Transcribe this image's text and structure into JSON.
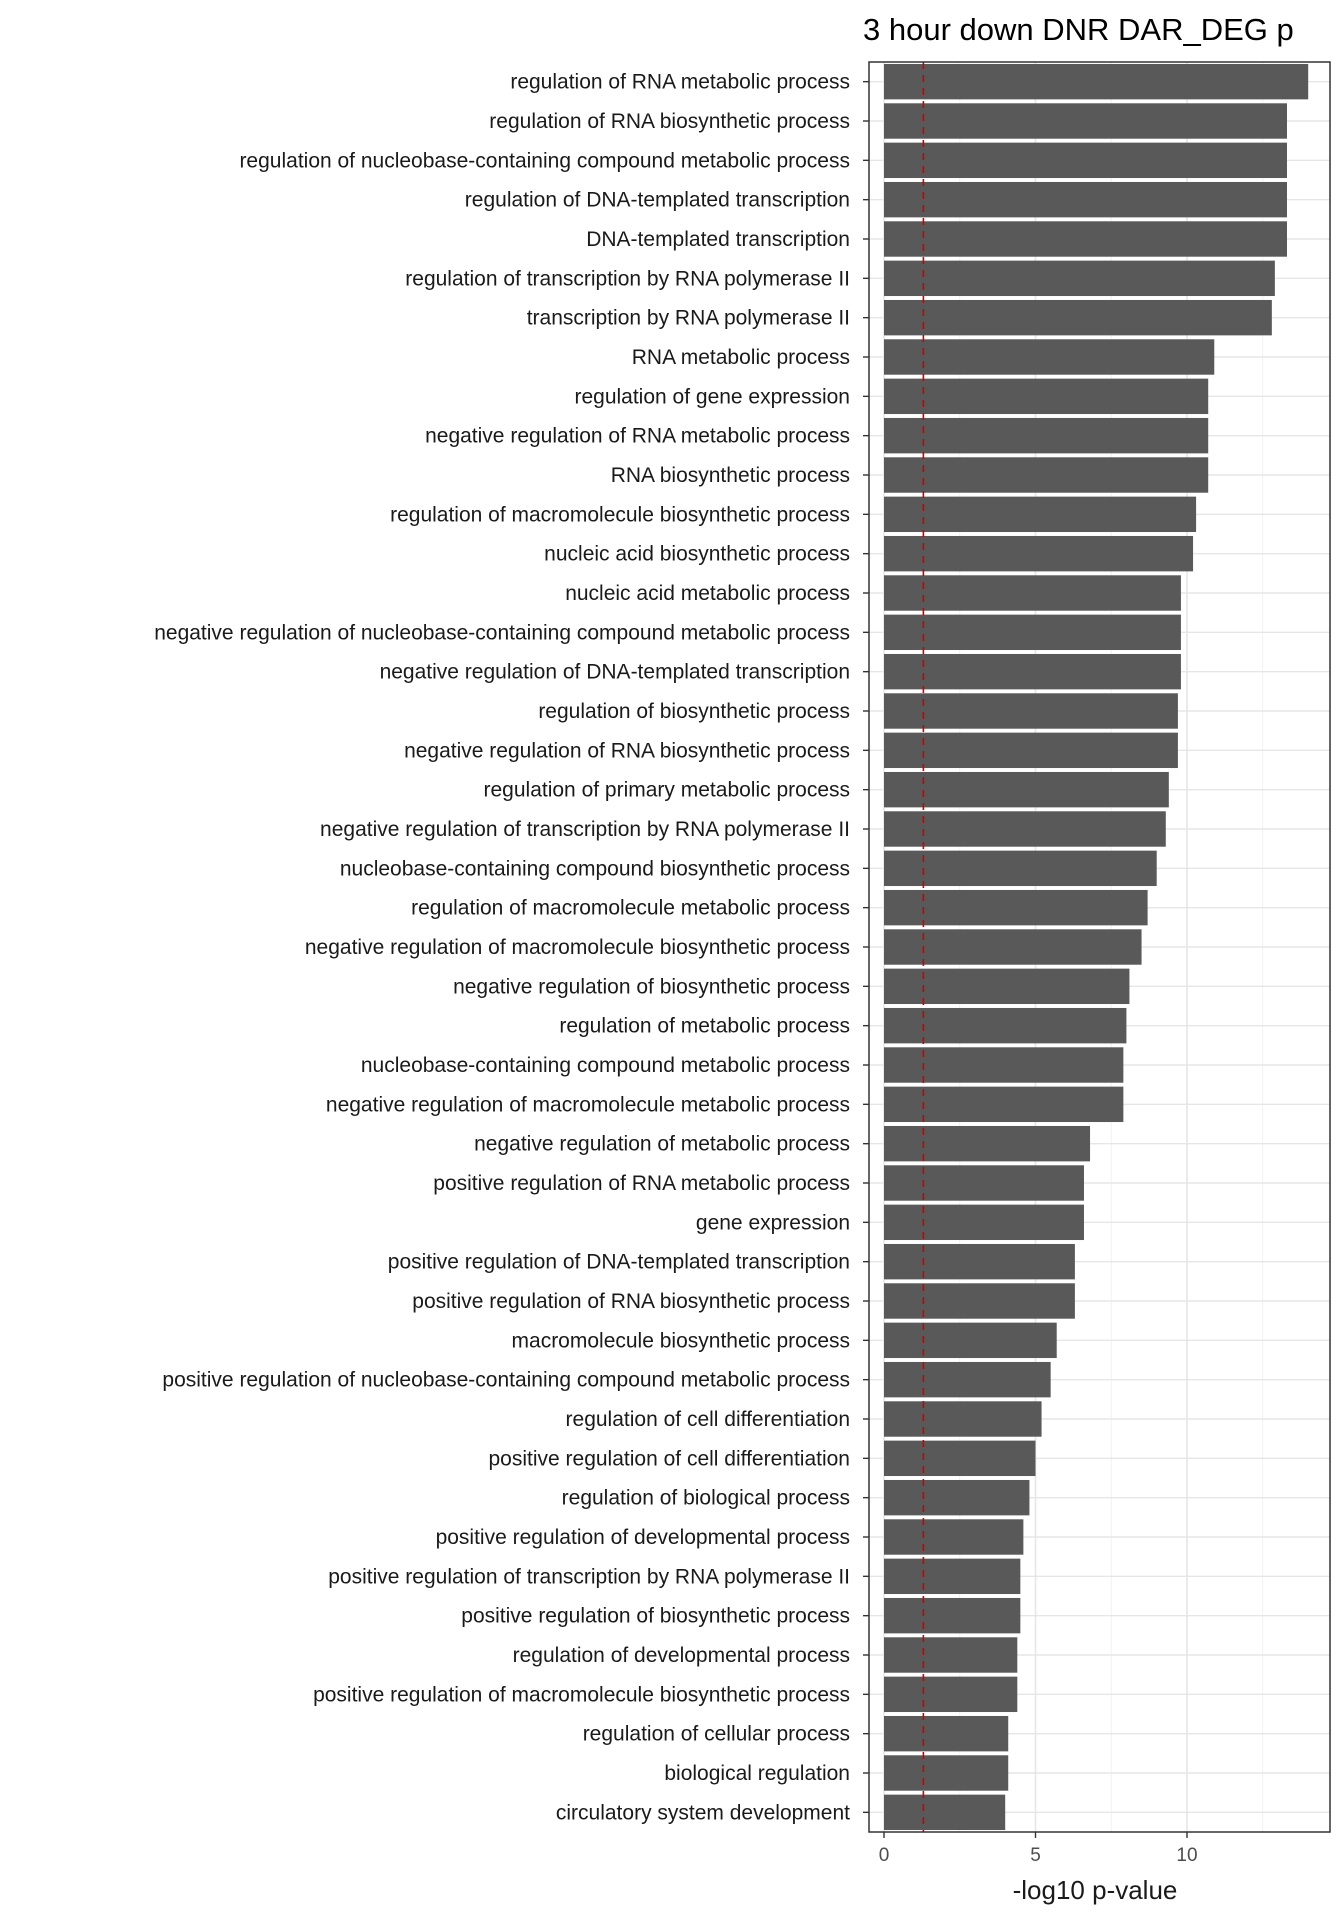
{
  "chart_data": {
    "type": "bar",
    "orientation": "horizontal",
    "title": "3 hour down DNR DAR_DEG p",
    "xlabel": "-log10 p-value",
    "ylabel": "",
    "xlim": [
      0,
      14.6
    ],
    "xticks": [
      "0",
      "5",
      "10"
    ],
    "grid": true,
    "reference_line": {
      "value": 1.3,
      "style": "dashed",
      "color": "#cc0000"
    },
    "bar_color": "#595959",
    "categories": [
      "regulation of RNA metabolic process",
      "regulation of RNA biosynthetic process",
      "regulation of nucleobase-containing compound metabolic process",
      "regulation of DNA-templated transcription",
      "DNA-templated transcription",
      "regulation of transcription by RNA polymerase II",
      "transcription by RNA polymerase II",
      "RNA metabolic process",
      "regulation of gene expression",
      "negative regulation of RNA metabolic process",
      "RNA biosynthetic process",
      "regulation of macromolecule biosynthetic process",
      "nucleic acid biosynthetic process",
      "nucleic acid metabolic process",
      "negative regulation of nucleobase-containing compound metabolic process",
      "negative regulation of DNA-templated transcription",
      "regulation of biosynthetic process",
      "negative regulation of RNA biosynthetic process",
      "regulation of primary metabolic process",
      "negative regulation of transcription by RNA polymerase II",
      "nucleobase-containing compound biosynthetic process",
      "regulation of macromolecule metabolic process",
      "negative regulation of macromolecule biosynthetic process",
      "negative regulation of biosynthetic process",
      "regulation of metabolic process",
      "nucleobase-containing compound metabolic process",
      "negative regulation of macromolecule metabolic process",
      "negative regulation of metabolic process",
      "positive regulation of RNA metabolic process",
      "gene expression",
      "positive regulation of DNA-templated transcription",
      "positive regulation of RNA biosynthetic process",
      "macromolecule biosynthetic process",
      "positive regulation of nucleobase-containing compound metabolic process",
      "regulation of cell differentiation",
      "positive regulation of cell differentiation",
      "regulation of biological process",
      "positive regulation of developmental process",
      "positive regulation of transcription by RNA polymerase II",
      "positive regulation of biosynthetic process",
      "regulation of developmental process",
      "positive regulation of macromolecule biosynthetic process",
      "regulation of cellular process",
      "biological regulation",
      "circulatory system development"
    ],
    "values": [
      14.0,
      13.3,
      13.3,
      13.3,
      13.3,
      12.9,
      12.8,
      10.9,
      10.7,
      10.7,
      10.7,
      10.3,
      10.2,
      9.8,
      9.8,
      9.8,
      9.7,
      9.7,
      9.4,
      9.3,
      9.0,
      8.7,
      8.5,
      8.1,
      8.0,
      7.9,
      7.9,
      6.8,
      6.6,
      6.6,
      6.3,
      6.3,
      5.7,
      5.5,
      5.2,
      5.0,
      4.8,
      4.6,
      4.5,
      4.5,
      4.4,
      4.4,
      4.1,
      4.1,
      4.0
    ]
  }
}
